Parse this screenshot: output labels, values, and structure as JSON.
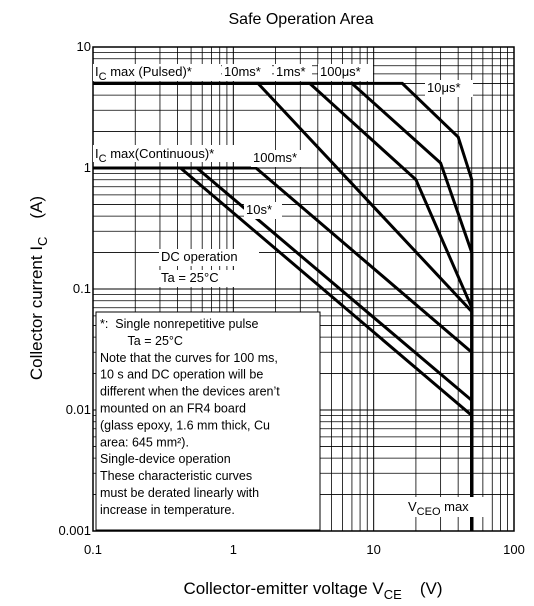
{
  "chart_data": {
    "type": "line",
    "title": "Safe Operation Area",
    "xscale": "log",
    "yscale": "log",
    "xlim": [
      0.1,
      100
    ],
    "ylim": [
      0.001,
      10
    ],
    "grid": true,
    "legend": "none",
    "xlabel": {
      "text": "Collector-emitter voltage  V",
      "sub": "CE",
      "unit": "(V)"
    },
    "ylabel": {
      "text": "Collector current  I",
      "sub": "C",
      "unit": "(A)"
    },
    "x_ticks": [
      {
        "value": 0.1,
        "label": "0.1"
      },
      {
        "value": 1,
        "label": "1"
      },
      {
        "value": 10,
        "label": "10"
      },
      {
        "value": 100,
        "label": "100"
      }
    ],
    "y_ticks": [
      {
        "value": 0.001,
        "label": "0.001"
      },
      {
        "value": 0.01,
        "label": "0.01"
      },
      {
        "value": 0.1,
        "label": "0.1"
      },
      {
        "value": 1,
        "label": "1"
      },
      {
        "value": 10,
        "label": "10"
      }
    ],
    "series": [
      {
        "id": "s10us",
        "x": [
          0.1,
          16,
          40,
          50,
          50
        ],
        "y": [
          5,
          5,
          1.8,
          0.8,
          0.001
        ]
      },
      {
        "id": "s100us",
        "x": [
          0.1,
          7,
          30,
          50,
          50
        ],
        "y": [
          5,
          5,
          1.1,
          0.2,
          0.001
        ]
      },
      {
        "id": "s1ms",
        "x": [
          0.1,
          3.5,
          20,
          50,
          50
        ],
        "y": [
          5,
          5,
          0.8,
          0.07,
          0.001
        ]
      },
      {
        "id": "s10ms",
        "x": [
          0.1,
          1.5,
          50,
          50
        ],
        "y": [
          5,
          5,
          0.065,
          0.001
        ]
      },
      {
        "id": "s100ms",
        "x": [
          0.1,
          1.45,
          50,
          50
        ],
        "y": [
          1,
          1,
          0.03,
          0.001
        ]
      },
      {
        "id": "s10s",
        "x": [
          0.1,
          0.55,
          50,
          50
        ],
        "y": [
          1,
          1,
          0.012,
          0.001
        ]
      },
      {
        "id": "sdc",
        "x": [
          0.1,
          0.42,
          50,
          50
        ],
        "y": [
          1,
          1,
          0.009,
          0.001
        ]
      }
    ],
    "annotations": [
      {
        "id": "pulsed",
        "text": "I",
        "sub": "C",
        "rest": " max (Pulsed)*"
      },
      {
        "id": "continuous",
        "text": "I",
        "sub": "C",
        "rest": " max(Continuous)*"
      },
      {
        "id": "l10ms",
        "text": "10ms*"
      },
      {
        "id": "l1ms",
        "text": "1ms*"
      },
      {
        "id": "l100us",
        "text": "100μs*"
      },
      {
        "id": "l10us",
        "text": "10μs*"
      },
      {
        "id": "l100ms",
        "text": "100ms*"
      },
      {
        "id": "l10s",
        "text": "10s*"
      },
      {
        "id": "ldc1",
        "text": "DC operation"
      },
      {
        "id": "ldc2",
        "text": "Ta = 25°C"
      },
      {
        "id": "vceo",
        "text": "V",
        "sub": "CEO",
        "rest": " max"
      }
    ],
    "note_lines": [
      "*:  Single nonrepetitive pulse",
      "        Ta = 25°C",
      "Note that the curves for 100 ms,",
      "10 s and DC operation will be",
      "different when the devices aren’t",
      "mounted on an FR4 board",
      "(glass epoxy, 1.6 mm thick, Cu",
      "area: 645 mm²).",
      "Single-device operation",
      "These characteristic curves",
      "must be derated linearly with",
      "increase in temperature."
    ]
  }
}
